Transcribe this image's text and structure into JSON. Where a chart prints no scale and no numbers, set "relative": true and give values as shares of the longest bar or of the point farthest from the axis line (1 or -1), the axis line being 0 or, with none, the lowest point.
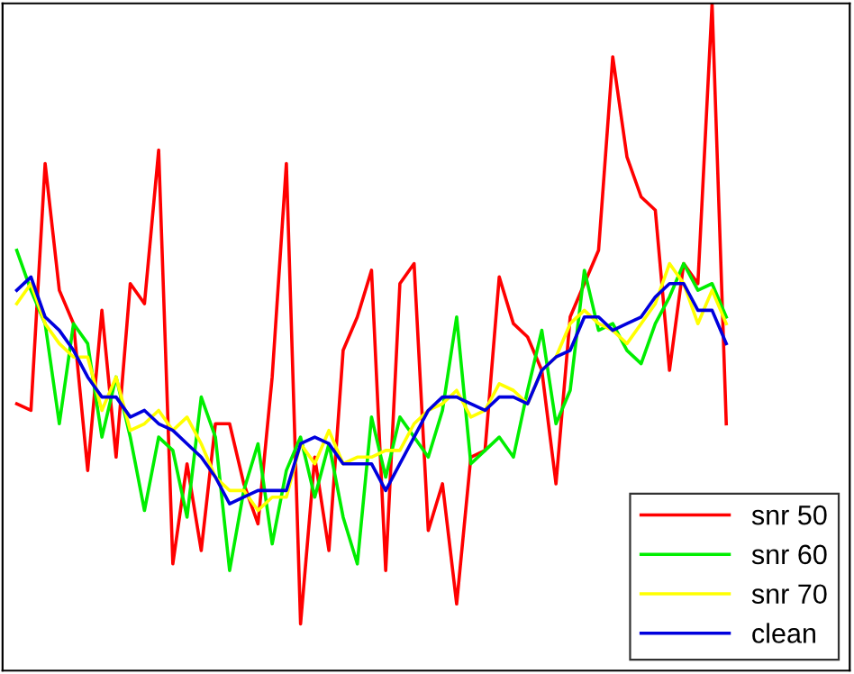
{
  "chart_data": {
    "type": "line",
    "relative": true,
    "categories": [
      null,
      null,
      null,
      null,
      null,
      null,
      null,
      null,
      null,
      null,
      null,
      null,
      null,
      null,
      null,
      null,
      null,
      null,
      null,
      null,
      null,
      null,
      null,
      null,
      null,
      null,
      null,
      null,
      null,
      null,
      null,
      null,
      null,
      null,
      null,
      null,
      null,
      null,
      null,
      null,
      null,
      null,
      null,
      null,
      null,
      null,
      null,
      null,
      null,
      null,
      null
    ],
    "series": [
      {
        "name": "snr 50",
        "color": "#ff0000",
        "values": [
          0.4,
          0.39,
          0.76,
          0.57,
          0.52,
          0.3,
          0.54,
          0.32,
          0.58,
          0.55,
          0.78,
          0.16,
          0.31,
          0.18,
          0.37,
          0.37,
          0.28,
          0.22,
          0.44,
          0.76,
          0.07,
          0.32,
          0.18,
          0.48,
          0.53,
          0.6,
          0.15,
          0.58,
          0.61,
          0.21,
          0.28,
          0.1,
          0.32,
          0.33,
          0.59,
          0.52,
          0.5,
          0.45,
          0.28,
          0.53,
          0.58,
          0.63,
          0.92,
          0.77,
          0.71,
          0.69,
          0.45,
          0.61,
          0.58,
          1.0,
          0.37
        ]
      },
      {
        "name": "snr 60",
        "color": "#00ee00",
        "values": [
          0.63,
          0.57,
          0.52,
          0.37,
          0.52,
          0.49,
          0.35,
          0.44,
          0.35,
          0.24,
          0.35,
          0.33,
          0.23,
          0.41,
          0.35,
          0.15,
          0.27,
          0.34,
          0.19,
          0.3,
          0.35,
          0.26,
          0.34,
          0.23,
          0.16,
          0.38,
          0.29,
          0.38,
          0.35,
          0.32,
          0.39,
          0.53,
          0.31,
          0.33,
          0.35,
          0.32,
          0.42,
          0.51,
          0.37,
          0.42,
          0.6,
          0.51,
          0.52,
          0.48,
          0.46,
          0.52,
          0.56,
          0.61,
          0.57,
          0.58,
          0.53
        ]
      },
      {
        "name": "snr 70",
        "color": "#ffff00",
        "values": [
          0.55,
          0.58,
          0.52,
          0.49,
          0.47,
          0.47,
          0.39,
          0.44,
          0.36,
          0.37,
          0.39,
          0.36,
          0.38,
          0.34,
          0.29,
          0.27,
          0.27,
          0.24,
          0.26,
          0.26,
          0.34,
          0.31,
          0.36,
          0.31,
          0.32,
          0.32,
          0.33,
          0.33,
          0.37,
          0.39,
          0.4,
          0.42,
          0.38,
          0.39,
          0.43,
          0.42,
          0.4,
          0.45,
          0.47,
          0.52,
          0.54,
          0.52,
          0.51,
          0.49,
          0.52,
          0.55,
          0.61,
          0.58,
          0.52,
          0.57,
          0.52
        ]
      },
      {
        "name": "clean",
        "color": "#0000dd",
        "values": [
          0.57,
          0.59,
          0.53,
          0.51,
          0.48,
          0.44,
          0.41,
          0.41,
          0.38,
          0.39,
          0.37,
          0.36,
          0.34,
          0.32,
          0.29,
          0.25,
          0.26,
          0.27,
          0.27,
          0.27,
          0.34,
          0.35,
          0.34,
          0.31,
          0.31,
          0.31,
          0.27,
          0.31,
          0.35,
          0.39,
          0.41,
          0.41,
          0.4,
          0.39,
          0.41,
          0.41,
          0.4,
          0.45,
          0.47,
          0.48,
          0.53,
          0.53,
          0.51,
          0.52,
          0.53,
          0.56,
          0.58,
          0.58,
          0.54,
          0.54,
          0.49
        ]
      }
    ],
    "legend": "bottom right"
  }
}
